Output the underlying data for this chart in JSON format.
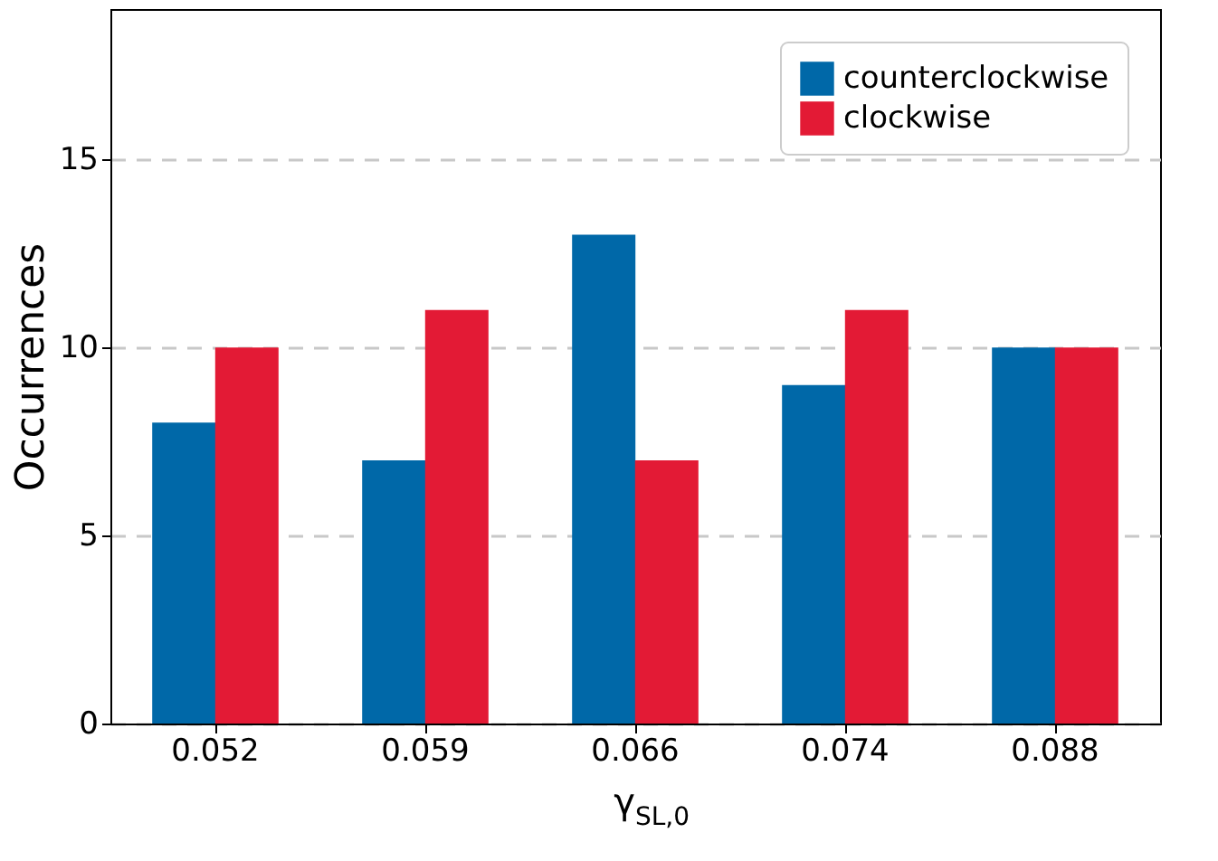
{
  "chart_data": {
    "type": "bar",
    "xlabel": "γ$_{SL,0}$",
    "ylabel": "Occurrences",
    "categories": [
      "0.052",
      "0.059",
      "0.066",
      "0.074",
      "0.088"
    ],
    "series": [
      {
        "name": "counterclockwise",
        "color": "#0068a8",
        "values": [
          8,
          7,
          13,
          9,
          10
        ]
      },
      {
        "name": "clockwise",
        "color": "#e31a35",
        "values": [
          10,
          11,
          7,
          11,
          10
        ]
      }
    ],
    "ylim": [
      0,
      19
    ],
    "yticks": [
      0,
      5,
      10,
      15
    ],
    "grid": "y",
    "legend": "top right"
  }
}
